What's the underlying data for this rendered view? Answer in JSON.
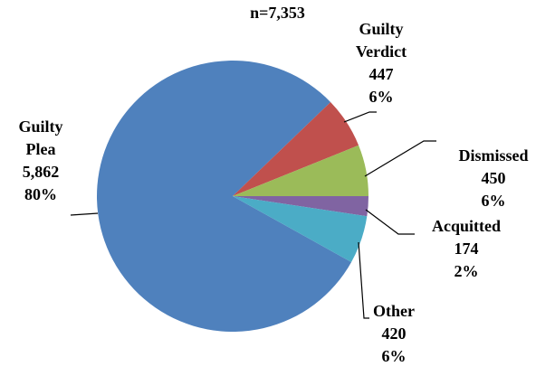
{
  "chart_data": {
    "type": "pie",
    "title": "n=7,353",
    "categories": [
      "Guilty Plea",
      "Guilty Verdict",
      "Dismissed",
      "Acquitted",
      "Other"
    ],
    "values": [
      5862,
      447,
      450,
      174,
      420
    ],
    "value_labels": [
      "5,862",
      "447",
      "450",
      "174",
      "420"
    ],
    "percent_labels": [
      "80%",
      "6%",
      "6%",
      "2%",
      "6%"
    ],
    "colors": [
      "#4f81bd",
      "#c0504d",
      "#9bbb59",
      "#8064a2",
      "#4bacc6"
    ]
  }
}
